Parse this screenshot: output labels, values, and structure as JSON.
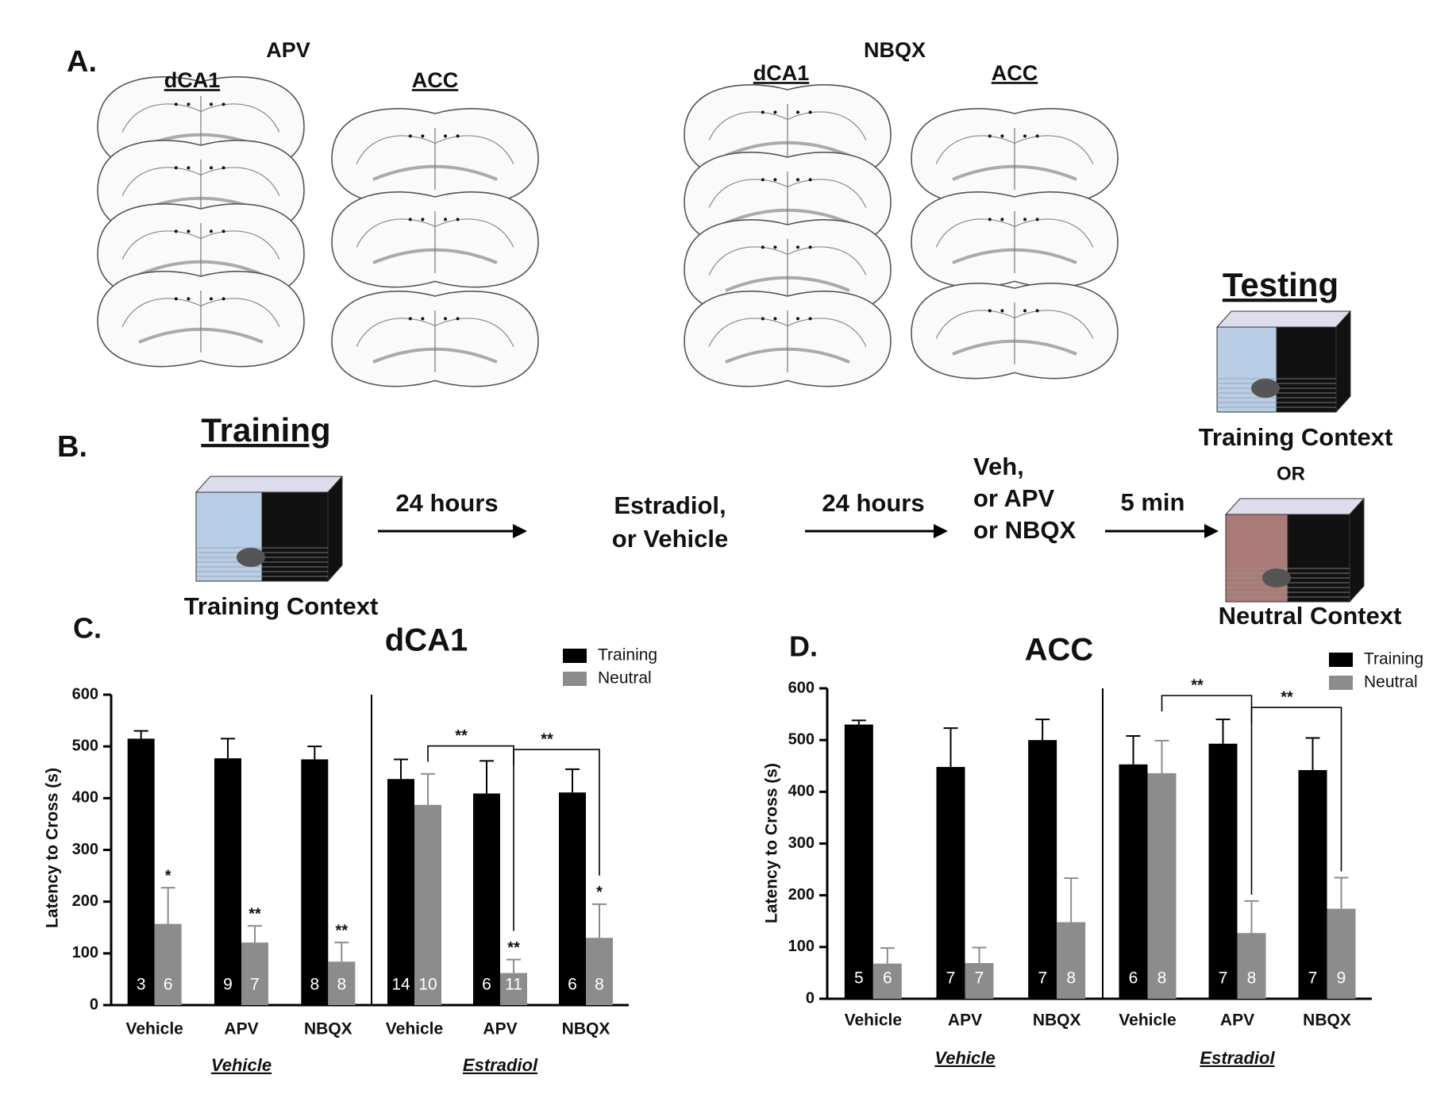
{
  "panel_a": {
    "label": "A.",
    "groups": [
      {
        "drug": "APV",
        "regions": [
          "dCA1",
          "ACC"
        ]
      },
      {
        "drug": "NBQX",
        "regions": [
          "dCA1",
          "ACC"
        ]
      }
    ]
  },
  "panel_b": {
    "label": "B.",
    "training_title": "Training",
    "training_context": "Training Context",
    "delay_1": "24 hours",
    "treatment_1": [
      "Estradiol,",
      "or Vehicle"
    ],
    "delay_2": "24 hours",
    "treatment_2": [
      "Veh,",
      "or APV",
      "or NBQX"
    ],
    "delay_3": "5 min",
    "testing_title": "Testing",
    "testing_context_1": "Training Context",
    "or": "OR",
    "testing_context_2": "Neutral Context"
  },
  "chart_data": [
    {
      "type": "bar",
      "panel_label": "C.",
      "title": "dCA1",
      "y_label": "Latency to Cross (s)",
      "categories": [
        "Vehicle",
        "APV",
        "NBQX",
        "Vehicle",
        "APV",
        "NBQX"
      ],
      "group_labels": [
        "Vehicle",
        "Estradiol"
      ],
      "series": [
        {
          "name": "Training",
          "color": "#000000",
          "values": [
            515,
            477,
            475,
            437,
            409,
            411
          ],
          "errors": [
            15,
            38,
            25,
            38,
            63,
            45
          ],
          "n": [
            3,
            9,
            8,
            14,
            6,
            6
          ]
        },
        {
          "name": "Neutral",
          "color": "#8c8c8c",
          "values": [
            157,
            121,
            84,
            387,
            62,
            130
          ],
          "errors": [
            70,
            32,
            37,
            60,
            26,
            65
          ],
          "n": [
            6,
            7,
            8,
            10,
            11,
            8
          ],
          "significance": [
            "*",
            "**",
            "**",
            null,
            "**",
            "*"
          ]
        }
      ],
      "brackets": [
        "**",
        "**"
      ],
      "ylim": [
        0,
        600
      ],
      "yticks": [
        0,
        100,
        200,
        300,
        400,
        500,
        600
      ],
      "legend": "upper right"
    },
    {
      "type": "bar",
      "panel_label": "D.",
      "title": "ACC",
      "y_label": "Latency to Cross (s)",
      "categories": [
        "Vehicle",
        "APV",
        "NBQX",
        "Vehicle",
        "APV",
        "NBQX"
      ],
      "group_labels": [
        "Vehicle",
        "Estradiol"
      ],
      "series": [
        {
          "name": "Training",
          "color": "#000000",
          "values": [
            530,
            448,
            500,
            453,
            493,
            442
          ],
          "errors": [
            8,
            75,
            40,
            55,
            47,
            62
          ],
          "n": [
            5,
            7,
            7,
            6,
            7,
            7
          ]
        },
        {
          "name": "Neutral",
          "color": "#8c8c8c",
          "values": [
            68,
            69,
            148,
            436,
            127,
            174
          ],
          "errors": [
            30,
            30,
            85,
            63,
            62,
            60
          ],
          "n": [
            6,
            7,
            8,
            8,
            8,
            9
          ]
        }
      ],
      "brackets": [
        "**",
        "**"
      ],
      "ylim": [
        0,
        600
      ],
      "yticks": [
        0,
        100,
        200,
        300,
        400,
        500,
        600
      ],
      "legend": "upper right"
    }
  ]
}
